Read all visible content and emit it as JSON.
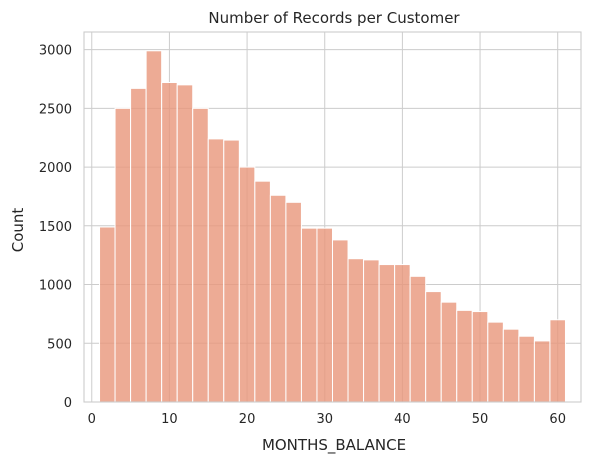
{
  "chart_data": {
    "type": "bar",
    "title": "Number of Records per Customer",
    "xlabel": "MONTHS_BALANCE",
    "ylabel": "Count",
    "xlim": [
      -1,
      63
    ],
    "ylim": [
      0,
      3150
    ],
    "xticks": [
      0,
      10,
      20,
      30,
      40,
      50,
      60
    ],
    "yticks": [
      0,
      500,
      1000,
      1500,
      2000,
      2500,
      3000
    ],
    "grid": true,
    "bar_color": "#e8967a",
    "bin_edges": [
      1,
      3,
      5,
      7,
      9,
      11,
      13,
      15,
      17,
      19,
      21,
      23,
      25,
      27,
      29,
      31,
      33,
      35,
      37,
      39,
      41,
      43,
      45,
      47,
      49,
      51,
      53,
      55,
      57,
      59,
      61
    ],
    "values": [
      1490,
      2500,
      2670,
      2990,
      2720,
      2700,
      2500,
      2240,
      2230,
      2000,
      1880,
      1760,
      1700,
      1480,
      1480,
      1380,
      1220,
      1210,
      1170,
      1170,
      1070,
      940,
      850,
      780,
      770,
      680,
      620,
      560,
      520,
      700
    ]
  }
}
